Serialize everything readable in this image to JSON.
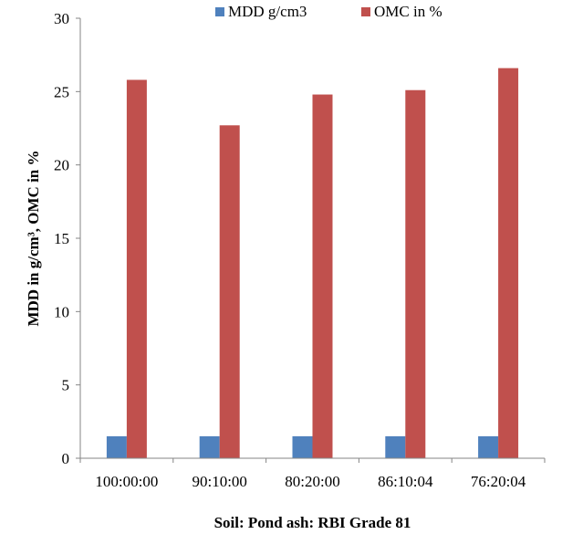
{
  "chart_data": {
    "type": "bar",
    "categories": [
      "100:00:00",
      "90:10:00",
      "80:20:00",
      "86:10:04",
      "76:20:04"
    ],
    "series": [
      {
        "name": "MDD g/cm3",
        "color": "#4F81BD",
        "values": [
          1.5,
          1.5,
          1.5,
          1.5,
          1.5
        ]
      },
      {
        "name": "OMC in %",
        "color": "#C0504D",
        "values": [
          25.8,
          22.7,
          24.8,
          25.1,
          26.6
        ]
      }
    ],
    "title": "",
    "xlabel": "Soil: Pond ash: RBI Grade 81",
    "ylabel": "MDD in g/cm³, OMC in %",
    "ylim": [
      0,
      30
    ],
    "yticks": [
      0,
      5,
      10,
      15,
      20,
      25,
      30
    ],
    "grid": false,
    "legend_position": "top"
  }
}
